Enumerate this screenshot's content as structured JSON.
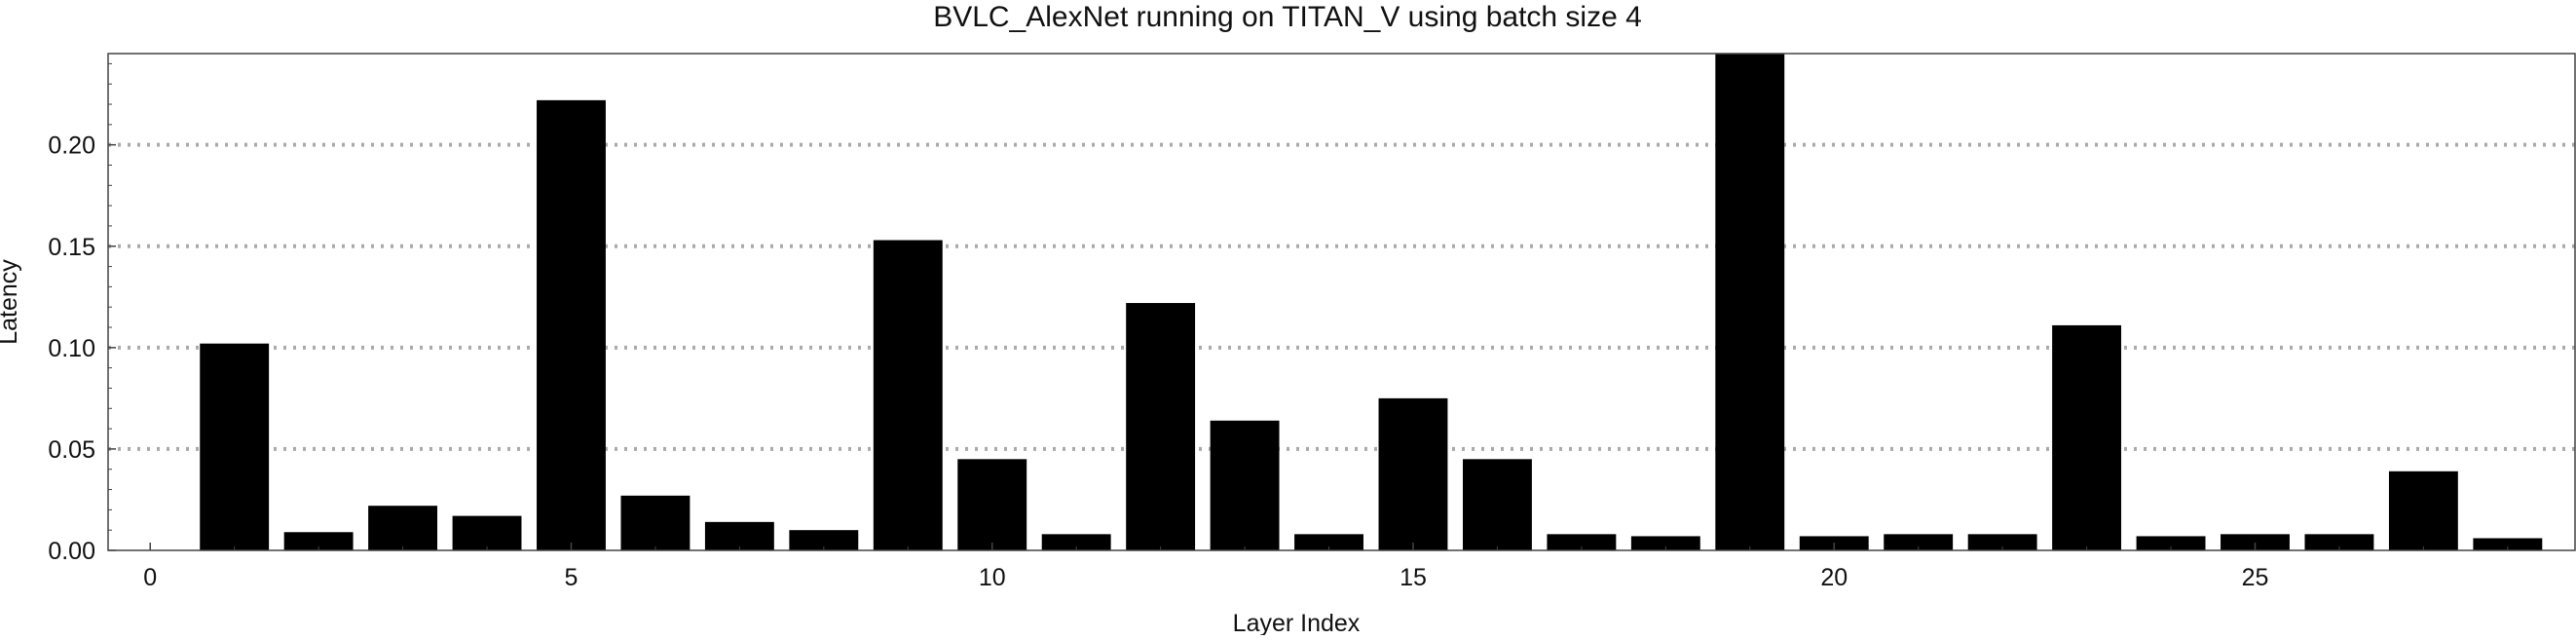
{
  "chart_data": {
    "type": "bar",
    "title": "BVLC_AlexNet running on TITAN_V using batch size 4",
    "xlabel": "Layer Index",
    "ylabel": "Latency",
    "x": [
      1,
      2,
      3,
      4,
      5,
      6,
      7,
      8,
      9,
      10,
      11,
      12,
      13,
      14,
      15,
      16,
      17,
      18,
      19,
      20,
      21,
      22,
      23,
      24,
      25,
      26,
      27,
      28
    ],
    "values": [
      0.102,
      0.009,
      0.022,
      0.017,
      0.222,
      0.027,
      0.014,
      0.01,
      0.153,
      0.045,
      0.008,
      0.122,
      0.064,
      0.008,
      0.075,
      0.045,
      0.008,
      0.007,
      0.245,
      0.007,
      0.008,
      0.008,
      0.111,
      0.007,
      0.008,
      0.008,
      0.039,
      0.006
    ],
    "xlim": [
      -0.5,
      28.8
    ],
    "ylim": [
      0,
      0.245
    ],
    "xticks": [
      "0",
      "5",
      "10",
      "15",
      "20",
      "25"
    ],
    "yticks": [
      "0.00",
      "0.05",
      "0.10",
      "0.15",
      "0.20"
    ],
    "grid": "horizontal dotted",
    "bar_color": "#000000",
    "grid_color": "#aaaaaa"
  }
}
